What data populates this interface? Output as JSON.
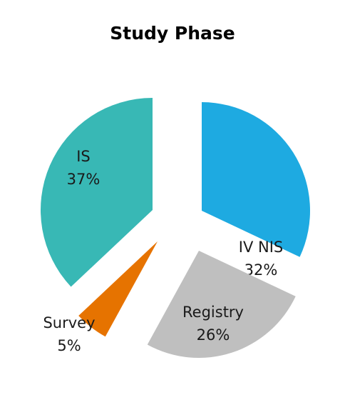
{
  "chart_data": {
    "type": "pie",
    "title": "Study Phase",
    "slices": [
      {
        "label": "IV NIS",
        "value": 32,
        "value_label": "32%",
        "color": "#1EAAE1"
      },
      {
        "label": "Registry",
        "value": 26,
        "value_label": "26%",
        "color": "#BFBFBF"
      },
      {
        "label": "Survey",
        "value": 5,
        "value_label": "5%",
        "color": "#E67300"
      },
      {
        "label": "IS",
        "value": 37,
        "value_label": "37%",
        "color": "#38B8B5"
      }
    ],
    "exploded": true,
    "start_angle": "12 o'clock, clockwise",
    "legend": "none (labels on slices)"
  }
}
